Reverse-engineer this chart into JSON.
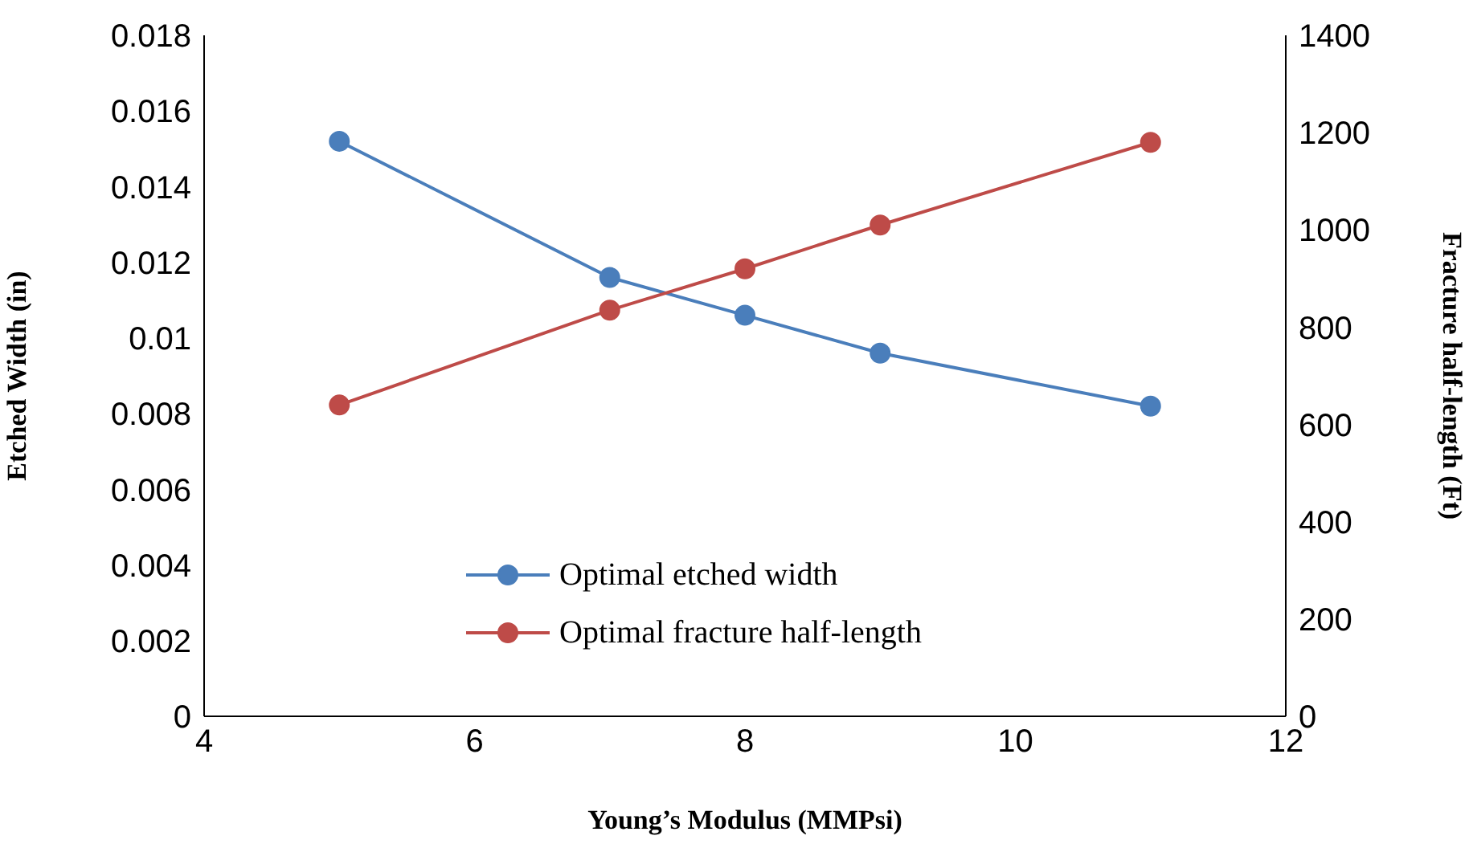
{
  "chart_data": {
    "type": "line",
    "xlabel": "Young’s Modulus (MMPsi)",
    "ylabel": "Etched Width (in)",
    "y2label": "Fracture half-length (Ft)",
    "x": [
      5,
      7,
      8,
      9,
      11
    ],
    "series": [
      {
        "name": "Optimal etched width",
        "color": "#4a7ebb",
        "values": [
          0.0152,
          0.0116,
          0.0106,
          0.0096,
          0.0082
        ]
      },
      {
        "name": "Optimal fracture half-length",
        "color": "#be4b48",
        "axis": "y2",
        "values": [
          640,
          835,
          920,
          1010,
          1180
        ]
      }
    ],
    "xlim": [
      4,
      12
    ],
    "xticks": [
      4,
      6,
      8,
      10,
      12
    ],
    "ylim": [
      0,
      0.018
    ],
    "yticks": [
      0,
      0.002,
      0.004,
      0.006,
      0.008,
      0.01,
      0.012,
      0.014,
      0.016,
      0.018
    ],
    "y2lim": [
      0,
      1400
    ],
    "y2ticks": [
      0,
      200,
      400,
      600,
      800,
      1000,
      1200,
      1400
    ],
    "legend": "bottom",
    "marker": "circle",
    "line_style": "solid",
    "grid": false
  }
}
